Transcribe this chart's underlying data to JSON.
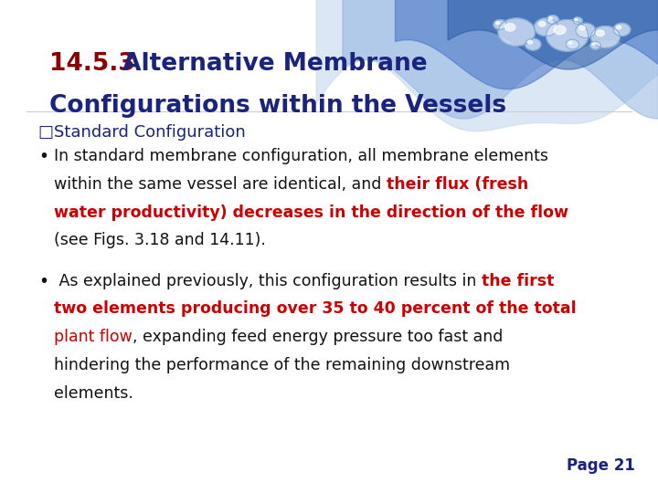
{
  "title_number": "14.5.3",
  "title_rest": " Alternative Membrane",
  "title_line2": "Configurations within the Vessels",
  "title_number_color": "#8B0000",
  "title_color": "#1a237e",
  "section_color": "#1a237e",
  "text_black": "#111111",
  "text_red": "#cc0000",
  "page_label": "Page 21",
  "page_color": "#1a237e",
  "bg_color": "#ffffff",
  "body_fs": 12.5,
  "title_fs": 19,
  "section_fs": 13
}
